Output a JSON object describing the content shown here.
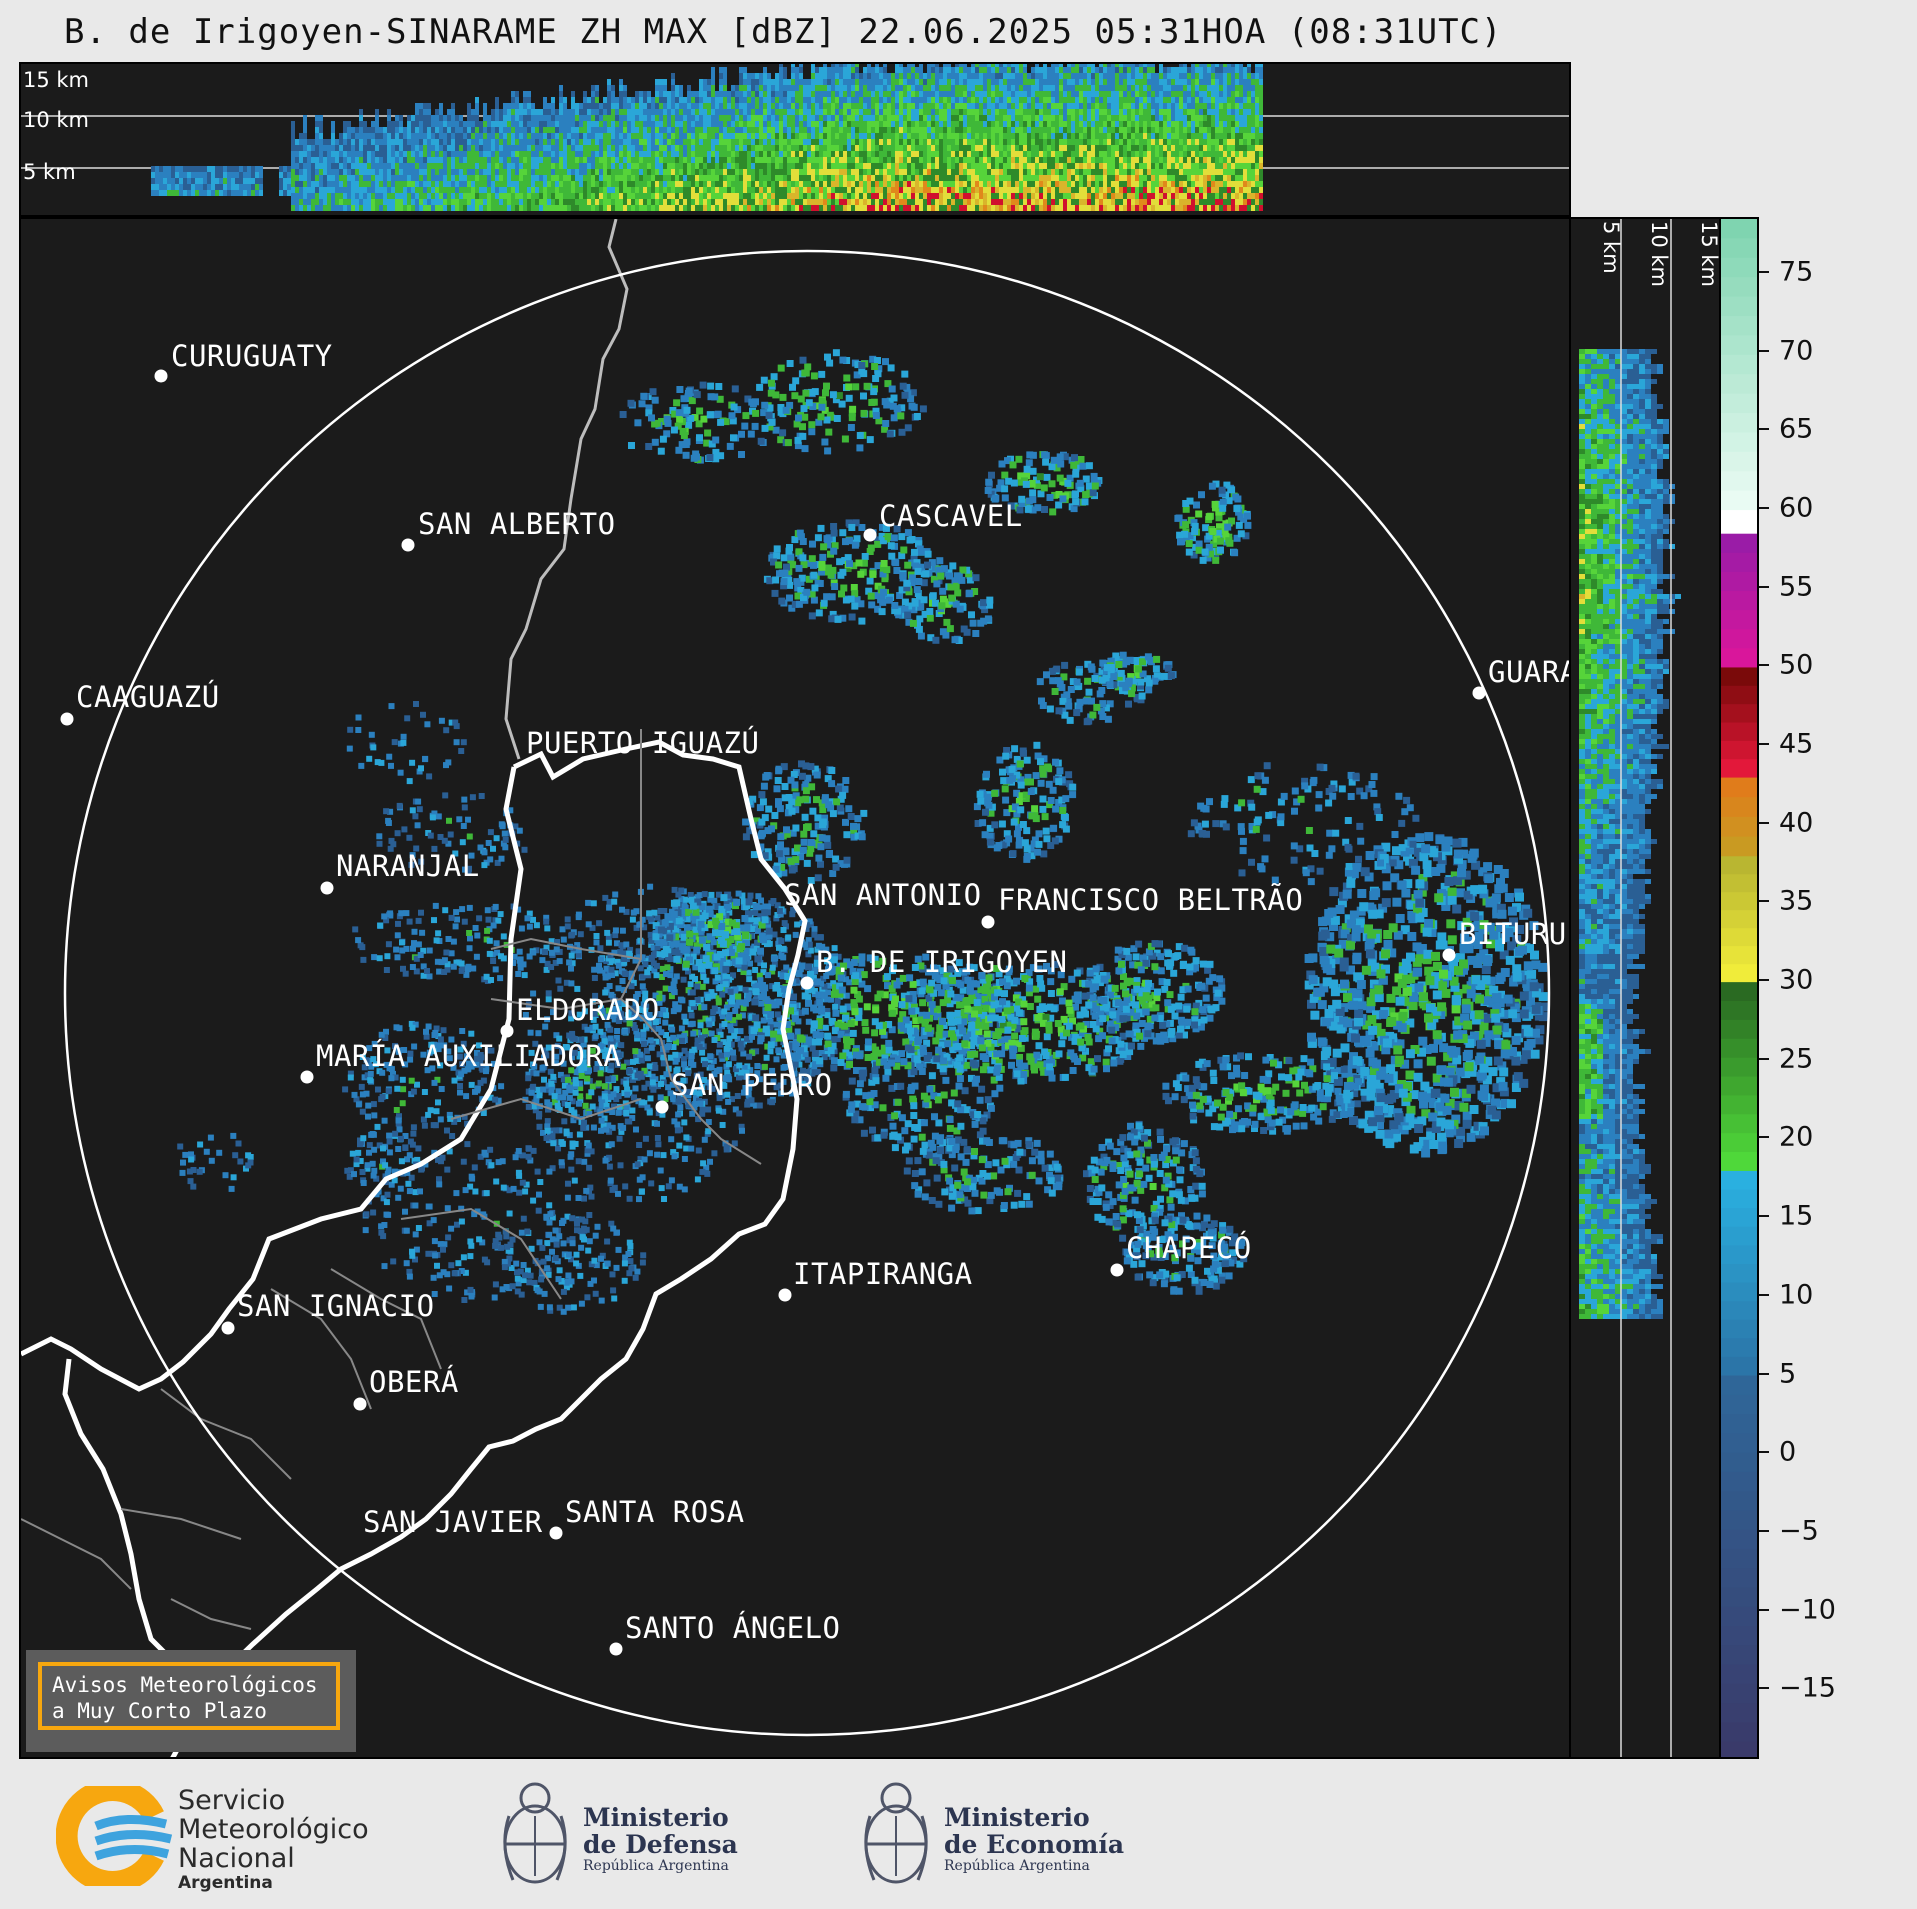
{
  "title": "B. de Irigoyen-SINARAME ZH MAX [dBZ] 22.06.2025 05:31HOA (08:31UTC)",
  "top_altitude_labels": [
    "15 km",
    "10 km",
    "5 km"
  ],
  "side_altitude_labels": [
    "5 km",
    "10 km",
    "15 km"
  ],
  "colorbar": {
    "unit": "dBZ",
    "ticks": [
      "75",
      "70",
      "65",
      "60",
      "55",
      "50",
      "45",
      "40",
      "35",
      "30",
      "25",
      "20",
      "15",
      "10",
      "5",
      "0",
      "−5",
      "−10",
      "−15"
    ],
    "colors": {
      "light_green": "#8ad8b4",
      "white": "#ffffff",
      "magenta": "#d90fc9",
      "red": "#d0102e",
      "orange": "#e0891b",
      "yellow": "#e8e43a",
      "green": "#2e8a2a",
      "bright_green": "#4bd436",
      "cyan": "#2a9fd0",
      "blue": "#3670a8",
      "navy": "#3a3d6e"
    }
  },
  "map": {
    "radar_site": "B. DE IRIGOYEN",
    "cities": [
      {
        "name": "CURUGUATY"
      },
      {
        "name": "SAN ALBERTO"
      },
      {
        "name": "CASCAVEL"
      },
      {
        "name": "CAAGUAZÚ"
      },
      {
        "name": "GUARA"
      },
      {
        "name": "PUERTO IGUAZÚ"
      },
      {
        "name": "NARANJAL"
      },
      {
        "name": "SAN ANTONIO"
      },
      {
        "name": "FRANCISCO BELTRÃO"
      },
      {
        "name": "BITURU"
      },
      {
        "name": "B. DE IRIGOYEN"
      },
      {
        "name": "ELDORADO"
      },
      {
        "name": "MARÍA AUXILIADORA"
      },
      {
        "name": "SAN PEDRO"
      },
      {
        "name": "CHAPECÓ"
      },
      {
        "name": "ITAPIRANGA"
      },
      {
        "name": "SAN IGNACIO"
      },
      {
        "name": "OBERÁ"
      },
      {
        "name": "SAN JAVIER"
      },
      {
        "name": "SANTA ROSA"
      },
      {
        "name": "SANTO ÁNGELO"
      }
    ]
  },
  "warning_box": {
    "line1": "Avisos Meteorológicos",
    "line2": "a Muy Corto Plazo"
  },
  "logos": {
    "smn": {
      "line1": "Servicio",
      "line2": "Meteorológico",
      "line3": "Nacional",
      "line4": "Argentina"
    },
    "defensa": {
      "line1": "Ministerio",
      "line2": "de Defensa",
      "line3": "República Argentina"
    },
    "economia": {
      "line1": "Ministerio",
      "line2": "de Economía",
      "line3": "República Argentina"
    }
  }
}
